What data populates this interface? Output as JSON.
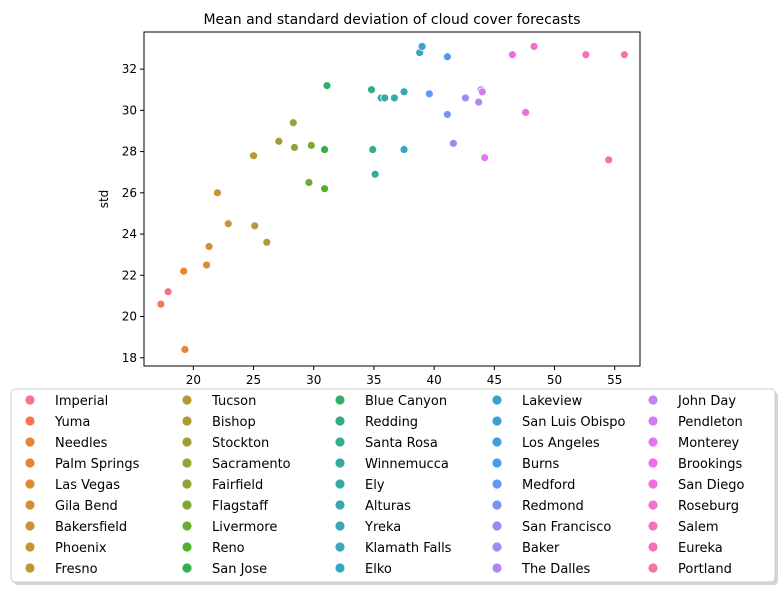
{
  "chart_data": {
    "type": "scatter",
    "title": "Mean and standard deviation of cloud cover forecasts",
    "xlabel": "",
    "ylabel": "std",
    "xlim": [
      15.9,
      57.1
    ],
    "ylim": [
      17.6,
      33.8
    ],
    "xticks": [
      20,
      25,
      30,
      35,
      40,
      45,
      50,
      55
    ],
    "yticks": [
      18,
      20,
      22,
      24,
      26,
      28,
      30,
      32
    ],
    "grid": false,
    "legend": {
      "placement": "bottom",
      "columns": 5
    },
    "series": [
      {
        "name": "Imperial",
        "color": "#f77189",
        "x": 17.9,
        "y": 21.2
      },
      {
        "name": "Yuma",
        "color": "#f7754f",
        "x": 17.3,
        "y": 20.6
      },
      {
        "name": "Needles",
        "color": "#e98432",
        "x": 19.2,
        "y": 22.2
      },
      {
        "name": "Palm Springs",
        "color": "#e98432",
        "x": 19.3,
        "y": 18.4
      },
      {
        "name": "Las Vegas",
        "color": "#df8a31",
        "x": 21.1,
        "y": 22.5
      },
      {
        "name": "Gila Bend",
        "color": "#d68f31",
        "x": 21.3,
        "y": 23.4
      },
      {
        "name": "Bakersfield",
        "color": "#cc9431",
        "x": 22.0,
        "y": 26.0
      },
      {
        "name": "Phoenix",
        "color": "#c39731",
        "x": 22.9,
        "y": 24.5
      },
      {
        "name": "Fresno",
        "color": "#bb9832",
        "x": 25.0,
        "y": 27.8
      },
      {
        "name": "Tucson",
        "color": "#b39a32",
        "x": 25.1,
        "y": 24.4
      },
      {
        "name": "Bishop",
        "color": "#ab9c32",
        "x": 26.1,
        "y": 23.6
      },
      {
        "name": "Stockton",
        "color": "#a29e32",
        "x": 27.1,
        "y": 28.5
      },
      {
        "name": "Sacramento",
        "color": "#99a132",
        "x": 28.3,
        "y": 29.4
      },
      {
        "name": "Fairfield",
        "color": "#8ea432",
        "x": 28.4,
        "y": 28.2
      },
      {
        "name": "Flagstaff",
        "color": "#80a732",
        "x": 29.8,
        "y": 28.3
      },
      {
        "name": "Livermore",
        "color": "#6aab32",
        "x": 29.6,
        "y": 26.5
      },
      {
        "name": "Reno",
        "color": "#50b132",
        "x": 30.9,
        "y": 26.2
      },
      {
        "name": "San Jose",
        "color": "#33b04d",
        "x": 30.9,
        "y": 28.1
      },
      {
        "name": "Blue Canyon",
        "color": "#34ae6c",
        "x": 31.1,
        "y": 31.2
      },
      {
        "name": "Redding",
        "color": "#35ad7f",
        "x": 34.8,
        "y": 31.0
      },
      {
        "name": "Santa Rosa",
        "color": "#36ab8e",
        "x": 34.9,
        "y": 28.1
      },
      {
        "name": "Winnemucca",
        "color": "#36aa9a",
        "x": 35.1,
        "y": 26.9
      },
      {
        "name": "Ely",
        "color": "#37a9a3",
        "x": 35.6,
        "y": 30.6
      },
      {
        "name": "Alturas",
        "color": "#38a8ab",
        "x": 35.9,
        "y": 30.6
      },
      {
        "name": "Yreka",
        "color": "#38a7b2",
        "x": 36.7,
        "y": 30.6
      },
      {
        "name": "Klamath Falls",
        "color": "#39a6b9",
        "x": 37.5,
        "y": 30.9
      },
      {
        "name": "Elko",
        "color": "#3aa5c0",
        "x": 37.5,
        "y": 28.1
      },
      {
        "name": "Lakeview",
        "color": "#3ba3c8",
        "x": 38.8,
        "y": 32.8
      },
      {
        "name": "San Luis Obispo",
        "color": "#3ca1d2",
        "x": 39.0,
        "y": 33.1
      },
      {
        "name": "Los Angeles",
        "color": "#3f9fdf",
        "x": 39.6,
        "y": 30.8
      },
      {
        "name": "Burns",
        "color": "#4a9cef",
        "x": 41.1,
        "y": 32.6
      },
      {
        "name": "Medford",
        "color": "#6596f4",
        "x": 39.6,
        "y": 30.8
      },
      {
        "name": "Redmond",
        "color": "#7b92f4",
        "x": 41.1,
        "y": 29.8
      },
      {
        "name": "San Francisco",
        "color": "#8e8ef4",
        "x": 41.6,
        "y": 28.4
      },
      {
        "name": "Baker",
        "color": "#a08af4",
        "x": 42.6,
        "y": 30.6
      },
      {
        "name": "The Dalles",
        "color": "#b186f4",
        "x": 43.7,
        "y": 30.4
      },
      {
        "name": "John Day",
        "color": "#c281f4",
        "x": 43.9,
        "y": 31.0
      },
      {
        "name": "Pendleton",
        "color": "#d47bf4",
        "x": 44.0,
        "y": 30.9
      },
      {
        "name": "Monterey",
        "color": "#e574f4",
        "x": 44.2,
        "y": 27.7
      },
      {
        "name": "Brookings",
        "color": "#f26bed",
        "x": 46.5,
        "y": 32.7
      },
      {
        "name": "San Diego",
        "color": "#f46ddd",
        "x": 47.6,
        "y": 29.9
      },
      {
        "name": "Roseburg",
        "color": "#f46fcf",
        "x": 48.3,
        "y": 33.1
      },
      {
        "name": "Salem",
        "color": "#f570c2",
        "x": 52.6,
        "y": 32.7
      },
      {
        "name": "Eureka",
        "color": "#f571b4",
        "x": 54.5,
        "y": 27.6
      },
      {
        "name": "Portland",
        "color": "#f674a3",
        "x": 55.8,
        "y": 32.7
      }
    ]
  }
}
